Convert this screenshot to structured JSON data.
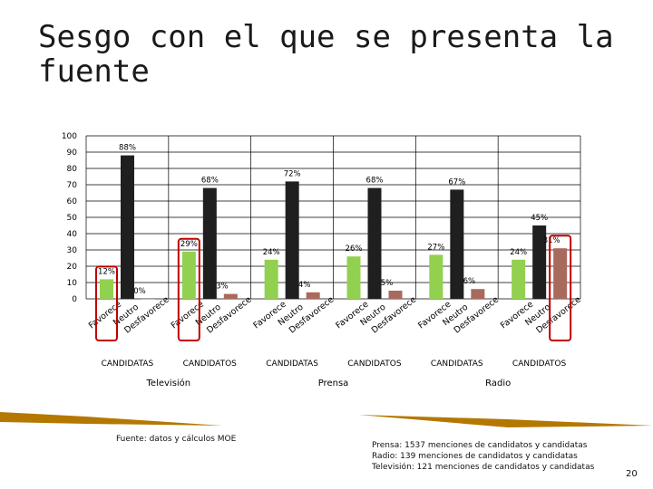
{
  "slide": {
    "title": "Sesgo con el que se presenta la fuente",
    "source_note": "Fuente: datos y cálculos MOE",
    "mentions": [
      "Prensa: 1537 menciones de candidatos y candidatas",
      "Radio: 139 menciones de candidatos y candidatas",
      "Televisión: 121 menciones de candidatos y candidatas"
    ],
    "page_number": "20"
  },
  "colors": {
    "favorece": "#92d050",
    "neutro": "#1f1f1f",
    "desfavorece": "#a86a5c",
    "highlight": "#c00000",
    "grid": "#000000"
  },
  "chart_data": {
    "type": "bar",
    "ylim": [
      0,
      100
    ],
    "yticks": [
      0,
      10,
      20,
      30,
      40,
      50,
      60,
      70,
      80,
      90,
      100
    ],
    "categories": [
      "Favorece",
      "Neutro",
      "Desfavorece"
    ],
    "groups": [
      {
        "label": "CANDIDATAS",
        "media": "Televisión",
        "values": [
          12,
          88,
          0
        ],
        "labels": [
          "12%",
          "88%",
          "0%"
        ]
      },
      {
        "label": "CANDIDATOS",
        "media": "Televisión",
        "values": [
          29,
          68,
          3
        ],
        "labels": [
          "29%",
          "68%",
          "3%"
        ]
      },
      {
        "label": "CANDIDATAS",
        "media": "Prensa",
        "values": [
          24,
          72,
          4
        ],
        "labels": [
          "24%",
          "72%",
          "4%"
        ]
      },
      {
        "label": "CANDIDATOS",
        "media": "Prensa",
        "values": [
          26,
          68,
          5
        ],
        "labels": [
          "26%",
          "68%",
          "5%"
        ]
      },
      {
        "label": "CANDIDATAS",
        "media": "Radio",
        "values": [
          27,
          67,
          6
        ],
        "labels": [
          "27%",
          "67%",
          "6%"
        ]
      },
      {
        "label": "CANDIDATOS",
        "media": "Radio",
        "values": [
          24,
          45,
          31
        ],
        "labels": [
          "24%",
          "45%",
          "31%"
        ]
      }
    ],
    "media_labels": [
      "Televisión",
      "Prensa",
      "Radio"
    ],
    "highlighted_bars": [
      {
        "group": 0,
        "category": 0
      },
      {
        "group": 1,
        "category": 0
      },
      {
        "group": 5,
        "category": 2
      }
    ]
  }
}
